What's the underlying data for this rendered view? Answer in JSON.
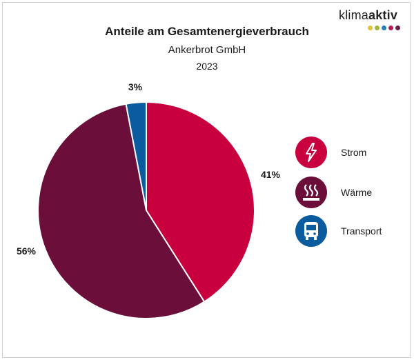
{
  "logo": {
    "text_regular": "klima",
    "text_bold": "aktiv",
    "dot_colors": [
      "#e3c43a",
      "#a0b83a",
      "#1f82b6",
      "#b8195a",
      "#6a1f4d"
    ]
  },
  "chart_data": {
    "type": "pie",
    "title": "Anteile am Gesamtenergieverbrauch",
    "subtitle": "Ankerbrot GmbH",
    "year": "2023",
    "categories": [
      "Strom",
      "Wärme",
      "Transport"
    ],
    "values": [
      41,
      56,
      3
    ],
    "value_labels": [
      "41%",
      "56%",
      "3%"
    ],
    "colors": [
      "#c8003e",
      "#6b0f3a",
      "#0b5c9e"
    ],
    "legend_placement": "right",
    "legend_icons": [
      "lightning-icon",
      "heat-icon",
      "bus-icon"
    ]
  }
}
